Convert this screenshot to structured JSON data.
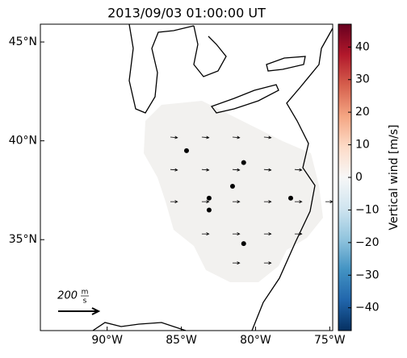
{
  "chart_data": {
    "type": "map",
    "title": "2013/09/03 01:00:00 UT",
    "xlim": [
      -94.5,
      -74.8
    ],
    "ylim": [
      30.4,
      45.9
    ],
    "xticks": [
      {
        "value": -90,
        "label": "90°W"
      },
      {
        "value": -85,
        "label": "85°W"
      },
      {
        "value": -80,
        "label": "80°W"
      },
      {
        "value": -75,
        "label": "75°W"
      }
    ],
    "yticks": [
      {
        "value": 35,
        "label": "35°N"
      },
      {
        "value": 40,
        "label": "40°N"
      },
      {
        "value": 45,
        "label": "45°N"
      }
    ],
    "points": {
      "color": "#000000",
      "lon": [
        -84.65,
        -80.8,
        -81.55,
        -83.13,
        -83.13,
        -77.63,
        -80.8
      ],
      "lat": [
        39.5,
        38.9,
        37.7,
        37.1,
        36.5,
        37.1,
        34.8
      ]
    },
    "vectors": {
      "color": "#000000",
      "lon": [
        -85.74,
        -83.62,
        -81.55,
        -79.43,
        -85.74,
        -83.62,
        -81.55,
        -79.43,
        -77.36,
        -85.74,
        -83.62,
        -81.55,
        -79.43,
        -77.36,
        -75.29,
        -83.62,
        -81.55,
        -79.43,
        -77.36,
        -81.55,
        -79.43
      ],
      "lat": [
        40.19,
        40.19,
        40.19,
        40.19,
        38.55,
        38.55,
        38.55,
        38.55,
        38.55,
        36.92,
        36.92,
        36.92,
        36.92,
        36.92,
        36.92,
        35.29,
        35.29,
        35.29,
        35.29,
        33.82,
        33.82
      ],
      "u": [
        35,
        35,
        35,
        35,
        35,
        35,
        35,
        35,
        35,
        35,
        35,
        35,
        35,
        35,
        35,
        35,
        35,
        35,
        35,
        35,
        35
      ],
      "v": [
        -3,
        -3,
        -3,
        -3,
        -3,
        -3,
        -3,
        -3,
        -3,
        0,
        0,
        0,
        0,
        0,
        0,
        0,
        0,
        0,
        0,
        0,
        0
      ]
    },
    "quiver_key": {
      "value": 200,
      "unit_num": "m",
      "unit_den": "s"
    },
    "colorbar": {
      "label": "Vertical wind [m/s]",
      "lim": [
        -47,
        47
      ],
      "colors": [
        "#053061",
        "#2166ac",
        "#4393c3",
        "#92c5de",
        "#d1e5f0",
        "#f7f7f7",
        "#fddbc7",
        "#f4a582",
        "#d6604d",
        "#b2182b",
        "#67001f"
      ],
      "ticks": [
        {
          "value": -40,
          "label": "−40"
        },
        {
          "value": -30,
          "label": "−30"
        },
        {
          "value": -20,
          "label": "−20"
        },
        {
          "value": -10,
          "label": "−10"
        },
        0,
        10,
        20,
        30,
        40
      ]
    }
  }
}
